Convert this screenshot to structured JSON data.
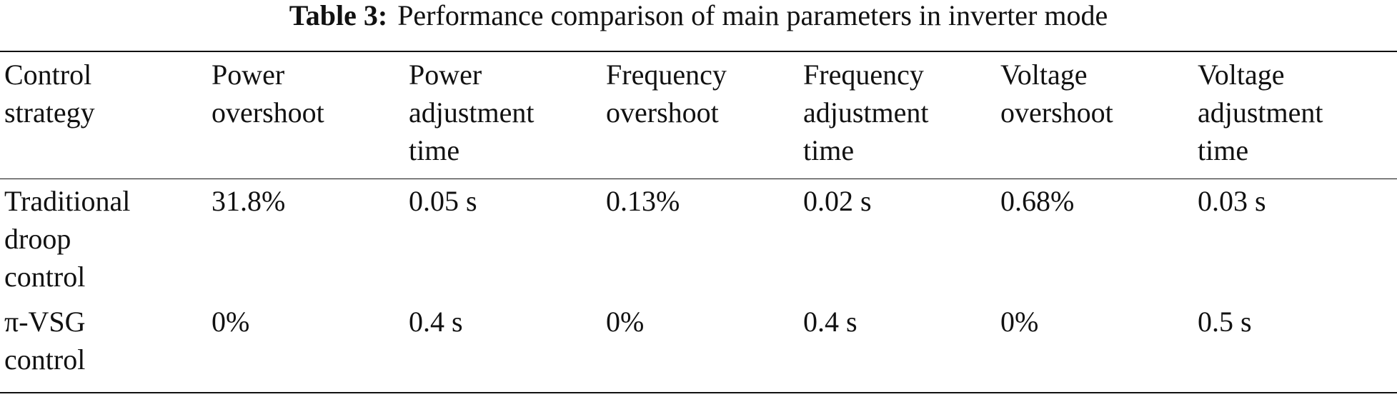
{
  "caption": {
    "label": "Table 3:",
    "text": "Performance comparison of main parameters in inverter mode"
  },
  "table": {
    "headers": [
      "Control\nstrategy",
      "Power\novershoot",
      "Power\nadjustment\ntime",
      "Frequency\novershoot",
      "Frequency\nadjustment\ntime",
      "Voltage\novershoot",
      "Voltage\nadjustment\ntime"
    ],
    "rows": [
      [
        "Traditional\ndroop\ncontrol",
        "31.8%",
        "0.05 s",
        "0.13%",
        "0.02 s",
        "0.68%",
        "0.03 s"
      ],
      [
        "π-VSG\ncontrol",
        "0%",
        "0.4 s",
        "0%",
        "0.4 s",
        "0%",
        "0.5 s"
      ]
    ]
  }
}
